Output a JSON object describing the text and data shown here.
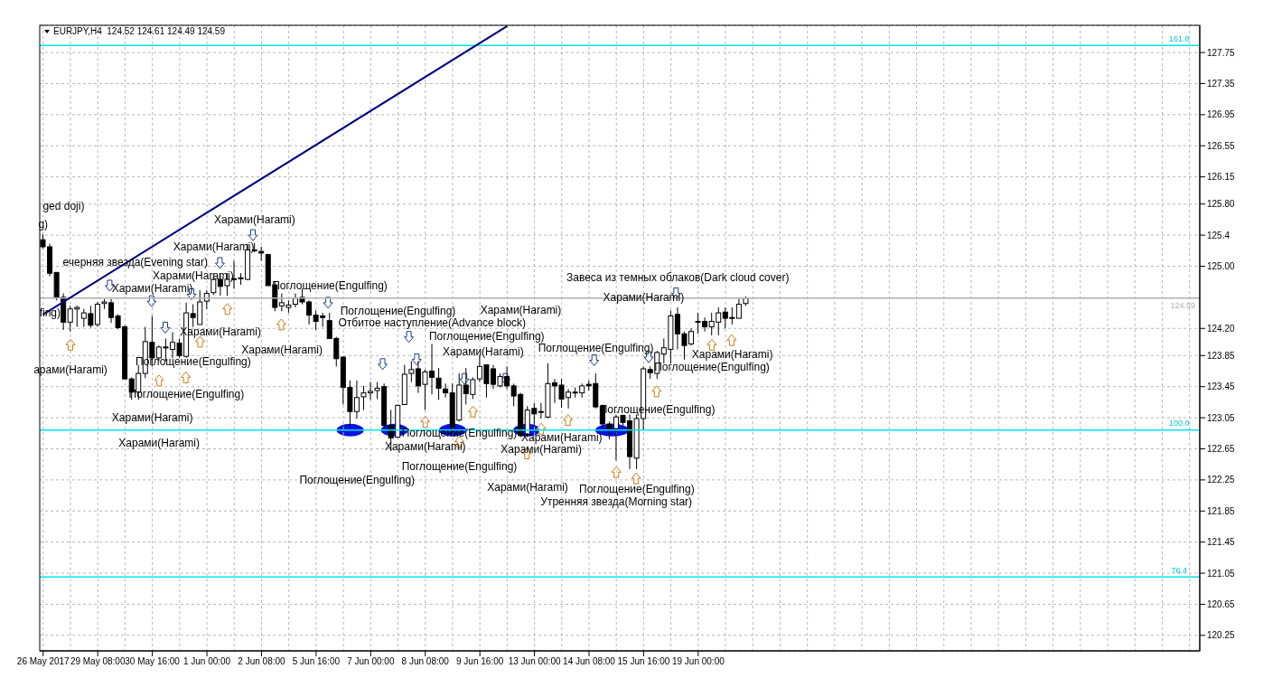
{
  "chart_data": {
    "type": "candlestick",
    "title": "EURJPY,H4  124.52 124.61 124.49 124.59",
    "categories": [
      "26 May 2017",
      null,
      null,
      null,
      null,
      null,
      null,
      null,
      "29 May 08:00",
      null,
      null,
      null,
      null,
      null,
      null,
      null,
      "30 May 16:00",
      null,
      null,
      null,
      null,
      null,
      null,
      null,
      "1 Jun 00:00",
      null,
      null,
      null,
      null,
      null,
      null,
      null,
      "2 Jun 08:00",
      null,
      null,
      null,
      null,
      null,
      null,
      null,
      "5 Jun 16:00",
      null,
      null,
      null,
      null,
      null,
      null,
      null,
      "7 Jun 00:00",
      null,
      null,
      null,
      null,
      null,
      null,
      null,
      "8 Jun 08:00",
      null,
      null,
      null,
      null,
      null,
      null,
      null,
      "9 Jun 16:00",
      null,
      null,
      null,
      null,
      null,
      null,
      null,
      "13 Jun 00:00",
      null,
      null,
      null,
      null,
      null,
      null,
      null,
      "14 Jun 08:00",
      null,
      null,
      null,
      null,
      null,
      null,
      null,
      "15 Jun 16:00",
      null,
      null,
      null,
      null,
      null,
      null,
      null,
      "19 Jun 00:00",
      null,
      null,
      null,
      null,
      null,
      null,
      null,
      null,
      null,
      null,
      null,
      null,
      null,
      null,
      null,
      null,
      null,
      null,
      null,
      null,
      null,
      null,
      null,
      null,
      null,
      null,
      null,
      null,
      null,
      null,
      null,
      null,
      null,
      null,
      null,
      null,
      null,
      null,
      null,
      null,
      null,
      null,
      null,
      null,
      null,
      null,
      null,
      null,
      null,
      null,
      null,
      null,
      null,
      null,
      null,
      null,
      null,
      null,
      null,
      null,
      null,
      null,
      null,
      null,
      null,
      null,
      null,
      null,
      null,
      null,
      null,
      null,
      null
    ],
    "ohlc": [
      [
        125.34,
        125.41,
        125.23,
        125.25
      ],
      [
        125.25,
        125.29,
        124.87,
        124.91
      ],
      [
        124.92,
        124.92,
        124.56,
        124.6
      ],
      [
        124.6,
        124.65,
        124.18,
        124.28
      ],
      [
        124.28,
        124.49,
        124.16,
        124.45
      ],
      [
        124.45,
        124.49,
        124.22,
        124.47
      ],
      [
        124.33,
        124.45,
        124.22,
        124.4
      ],
      [
        124.39,
        124.49,
        124.21,
        124.24
      ],
      [
        124.25,
        124.54,
        124.22,
        124.51
      ],
      [
        124.52,
        124.58,
        124.45,
        124.54
      ],
      [
        124.53,
        124.58,
        124.27,
        124.34
      ],
      [
        124.36,
        124.38,
        124.19,
        124.21
      ],
      [
        124.22,
        124.24,
        123.55,
        123.55
      ],
      [
        123.55,
        123.57,
        123.28,
        123.38
      ],
      [
        123.38,
        123.73,
        123.28,
        123.62
      ],
      [
        123.62,
        124.22,
        123.56,
        124.03
      ],
      [
        124.02,
        124.36,
        123.71,
        123.82
      ],
      [
        123.82,
        123.98,
        123.78,
        123.96
      ],
      [
        123.96,
        124.07,
        123.78,
        123.95
      ],
      [
        123.93,
        124.15,
        123.82,
        124.02
      ],
      [
        124.01,
        124.07,
        123.82,
        123.85
      ],
      [
        123.84,
        124.53,
        123.82,
        124.4
      ],
      [
        124.39,
        124.51,
        124.22,
        124.34
      ],
      [
        124.25,
        124.69,
        124.25,
        124.54
      ],
      [
        124.55,
        124.69,
        124.45,
        124.65
      ],
      [
        124.66,
        124.91,
        124.63,
        124.83
      ],
      [
        124.83,
        124.91,
        124.62,
        124.74
      ],
      [
        124.75,
        124.91,
        124.62,
        124.83
      ],
      [
        124.84,
        125.07,
        124.71,
        124.83
      ],
      [
        124.85,
        124.91,
        124.76,
        124.85
      ],
      [
        124.83,
        125.29,
        124.82,
        125.21
      ],
      [
        125.21,
        125.3,
        125.18,
        125.2
      ],
      [
        125.19,
        125.25,
        125.07,
        125.17
      ],
      [
        125.15,
        125.16,
        124.75,
        124.75
      ],
      [
        124.76,
        124.8,
        124.42,
        124.47
      ],
      [
        124.49,
        124.65,
        124.42,
        124.53
      ],
      [
        124.47,
        124.56,
        124.4,
        124.5
      ],
      [
        124.51,
        124.65,
        124.47,
        124.59
      ],
      [
        124.6,
        124.71,
        124.51,
        124.54
      ],
      [
        124.54,
        124.56,
        124.25,
        124.37
      ],
      [
        124.37,
        124.43,
        124.18,
        124.29
      ],
      [
        124.36,
        124.4,
        124.22,
        124.34
      ],
      [
        124.3,
        124.4,
        124.07,
        124.07
      ],
      [
        124.07,
        124.09,
        123.71,
        123.81
      ],
      [
        123.83,
        123.84,
        123.22,
        123.44
      ],
      [
        123.44,
        123.53,
        122.93,
        123.13
      ],
      [
        123.13,
        123.53,
        123.04,
        123.31
      ],
      [
        123.32,
        123.46,
        123.15,
        123.37
      ],
      [
        123.37,
        123.51,
        123.28,
        123.39
      ],
      [
        123.4,
        123.51,
        123.29,
        123.43
      ],
      [
        123.45,
        123.49,
        122.91,
        122.95
      ],
      [
        122.95,
        123.15,
        122.62,
        122.79
      ],
      [
        122.8,
        123.22,
        122.79,
        123.21
      ],
      [
        123.22,
        123.73,
        123.22,
        123.61
      ],
      [
        123.62,
        123.78,
        123.51,
        123.67
      ],
      [
        123.68,
        123.78,
        123.37,
        123.46
      ],
      [
        123.48,
        123.67,
        123.15,
        123.64
      ],
      [
        123.65,
        124.0,
        123.35,
        123.57
      ],
      [
        123.56,
        123.69,
        123.28,
        123.43
      ],
      [
        123.42,
        123.49,
        123.31,
        123.37
      ],
      [
        123.37,
        123.49,
        122.84,
        122.93
      ],
      [
        123.02,
        123.62,
        123.0,
        123.47
      ],
      [
        123.47,
        123.69,
        123.22,
        123.36
      ],
      [
        123.35,
        123.57,
        123.29,
        123.54
      ],
      [
        123.55,
        123.86,
        123.51,
        123.71
      ],
      [
        123.73,
        123.73,
        123.31,
        123.49
      ],
      [
        123.68,
        123.73,
        123.42,
        123.48
      ],
      [
        123.46,
        123.62,
        123.44,
        123.58
      ],
      [
        123.58,
        123.71,
        123.42,
        123.46
      ],
      [
        123.46,
        123.49,
        123.2,
        123.33
      ],
      [
        123.35,
        123.37,
        122.8,
        122.82
      ],
      [
        122.84,
        123.2,
        122.8,
        123.15
      ],
      [
        123.17,
        123.24,
        122.95,
        123.1
      ],
      [
        123.12,
        123.24,
        123.04,
        123.13
      ],
      [
        123.06,
        123.75,
        123.04,
        123.49
      ],
      [
        123.5,
        123.55,
        123.24,
        123.46
      ],
      [
        123.47,
        123.55,
        123.18,
        123.29
      ],
      [
        123.31,
        123.42,
        123.17,
        123.38
      ],
      [
        123.38,
        123.44,
        123.31,
        123.37
      ],
      [
        123.37,
        123.49,
        123.31,
        123.46
      ],
      [
        123.48,
        123.53,
        123.4,
        123.46
      ],
      [
        123.49,
        123.62,
        123.17,
        123.19
      ],
      [
        123.2,
        123.22,
        122.93,
        122.97
      ],
      [
        122.97,
        123.0,
        122.77,
        122.91
      ],
      [
        122.91,
        123.09,
        122.5,
        123.06
      ],
      [
        123.08,
        123.09,
        122.95,
        122.99
      ],
      [
        123.01,
        123.09,
        122.39,
        122.55
      ],
      [
        122.53,
        123.09,
        122.39,
        123.04
      ],
      [
        123.04,
        123.71,
        122.89,
        123.68
      ],
      [
        123.67,
        123.71,
        123.55,
        123.63
      ],
      [
        123.62,
        123.91,
        123.55,
        123.89
      ],
      [
        123.87,
        124.07,
        123.75,
        123.95
      ],
      [
        123.93,
        124.43,
        123.75,
        124.36
      ],
      [
        124.38,
        124.47,
        123.93,
        124.13
      ],
      [
        124.13,
        124.16,
        123.8,
        123.98
      ],
      [
        124.0,
        124.2,
        123.98,
        124.16
      ],
      [
        124.29,
        124.4,
        124.13,
        124.28
      ],
      [
        124.29,
        124.34,
        124.16,
        124.22
      ],
      [
        124.22,
        124.4,
        124.11,
        124.29
      ],
      [
        124.28,
        124.47,
        124.11,
        124.4
      ],
      [
        124.41,
        124.47,
        124.2,
        124.33
      ],
      [
        124.34,
        124.47,
        124.25,
        124.33
      ],
      [
        124.33,
        124.58,
        124.33,
        124.51
      ],
      [
        124.52,
        124.61,
        124.49,
        124.59
      ],
      null,
      null,
      null,
      null,
      null,
      null,
      null,
      null,
      null,
      null,
      null,
      null,
      null,
      null,
      null,
      null,
      null,
      null,
      null,
      null,
      null,
      null,
      null,
      null,
      null,
      null,
      null,
      null,
      null,
      null,
      null,
      null,
      null,
      null,
      null,
      null,
      null,
      null,
      null,
      null,
      null,
      null,
      null,
      null,
      null,
      null,
      null,
      null,
      null,
      null,
      null,
      null,
      null,
      null,
      null,
      null,
      null,
      null,
      null,
      null,
      null,
      null,
      null,
      null,
      null,
      null
    ],
    "series": [
      {
        "type": "line",
        "color": "#000080",
        "values": [
          124.38,
          null,
          null,
          null,
          null,
          null,
          null,
          null,
          null,
          null,
          null,
          null,
          null,
          null,
          null,
          null,
          null,
          null,
          null,
          null,
          null,
          null,
          null,
          null,
          null,
          null,
          null,
          null,
          null,
          null,
          null,
          null,
          null,
          null,
          null,
          null,
          null,
          null,
          null,
          null,
          null,
          null,
          null,
          null,
          null,
          null,
          null,
          null,
          null,
          null,
          null,
          null,
          null,
          null,
          null,
          null,
          null,
          null,
          null,
          null,
          null,
          null,
          null,
          null,
          null,
          null,
          null,
          null,
          128.09,
          null,
          null,
          null,
          null,
          null,
          null,
          null,
          null,
          null,
          null,
          null,
          null,
          null,
          null,
          null,
          null,
          null,
          null,
          null,
          null,
          null,
          null,
          null,
          null,
          null,
          null,
          null,
          null,
          null,
          null,
          null,
          null,
          null,
          null,
          null,
          null,
          null,
          null,
          null,
          null,
          null,
          null,
          null,
          null,
          null,
          null,
          null,
          null,
          null,
          null,
          null,
          null,
          null,
          null,
          null,
          null,
          null,
          null,
          null,
          null,
          null,
          null,
          null,
          null,
          null,
          null,
          null,
          null,
          null,
          null,
          null,
          null,
          null,
          null,
          null,
          null,
          null,
          null,
          null,
          null,
          null,
          null,
          null,
          null,
          null,
          null,
          null,
          null,
          null,
          null,
          null,
          null,
          null,
          null,
          null,
          null,
          null,
          null,
          null,
          null,
          null
        ]
      }
    ],
    "ylim": [
      120.05,
      128.1
    ],
    "yticks": [
      120.25,
      120.65,
      121.05,
      121.45,
      121.85,
      122.25,
      122.65,
      123.05,
      123.45,
      123.85,
      {
        "value": 124.2,
        "label": "124.20"
      },
      {
        "value": 125.0,
        "label": "125.00"
      },
      125.4,
      {
        "value": 125.8,
        "label": "125.80"
      },
      126.15,
      126.55,
      126.95,
      127.35,
      127.75
    ],
    "grid": true,
    "ref_lines": [
      {
        "axis": "y",
        "value": 127.84,
        "color": "#00e5ee"
      },
      {
        "axis": "y",
        "value": 122.89,
        "color": "#00e5ee"
      },
      {
        "axis": "y",
        "value": 121.0,
        "color": "#00e5ee"
      },
      {
        "axis": "y",
        "value": 124.59,
        "label": "124.59",
        "color": "#b0b0b0"
      }
    ],
    "annotations": [
      "ged doji)",
      "g)",
      "ечерняя звезда(Evening star)",
      "fing)",
      "арами(Harami)",
      "Харами(Harami)",
      "Харами(Harami)",
      "Харами(Harami)",
      "Харами(Harami)",
      "Харами(Harami)",
      "Харами(Harami)",
      "Харами(Harami)",
      "Поглощение(Engulfing)",
      "Поглощение(Engulfing)",
      "Харами(Harami)",
      "Поглощение(Engulfing)",
      "Поглощение(Engulfing)",
      "Отбитое наступление(Advance block)",
      "Харами(Harami)",
      "Поглощение(Engulfing)",
      "Поглощение(Engulfing)",
      "Харами(Harami)",
      "Поглощение(Engulfing)",
      "Харами(Harami)",
      "Поглощение(Engulfing)",
      "Харами(Harami)",
      "Завеса из темных облаков(Dark cloud cover)",
      "Поглощение(Engulfing)",
      "Поглощение(Engulfing)",
      "Харами(Harami)",
      "Харами(Harami)",
      "Харами(Harami)",
      "Поглощение(Engulfing)",
      "Харами(Harami)",
      "Поглощение(Engulfing)",
      "Утренняя звезда(Morning star)",
      "161.8",
      "100.0",
      "76.4"
    ]
  }
}
